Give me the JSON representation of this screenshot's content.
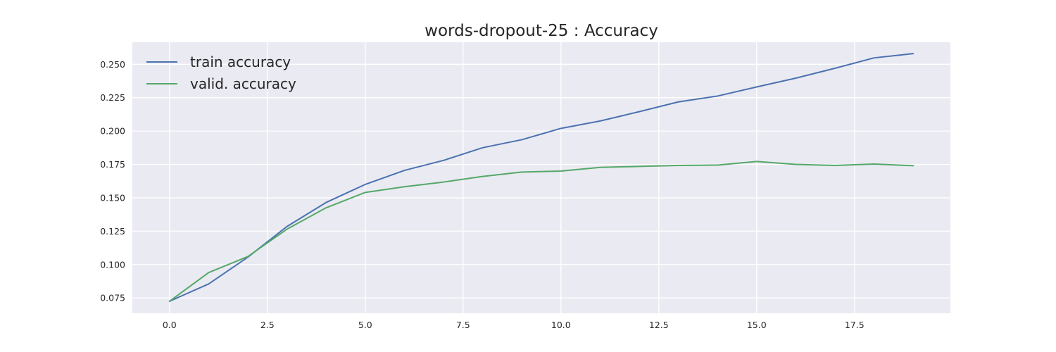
{
  "chart_data": {
    "type": "line",
    "title": "words-dropout-25 : Accuracy",
    "xlabel": "",
    "ylabel": "",
    "x": [
      0,
      1,
      2,
      3,
      4,
      5,
      6,
      7,
      8,
      9,
      10,
      11,
      12,
      13,
      14,
      15,
      16,
      17,
      18,
      19
    ],
    "xlim": [
      -0.95,
      19.95
    ],
    "ylim": [
      0.0635,
      0.2665
    ],
    "x_ticks": [
      0.0,
      2.5,
      5.0,
      7.5,
      10.0,
      12.5,
      15.0,
      17.5
    ],
    "x_tick_labels": [
      "0.0",
      "2.5",
      "5.0",
      "7.5",
      "10.0",
      "12.5",
      "15.0",
      "17.5"
    ],
    "y_ticks": [
      0.075,
      0.1,
      0.125,
      0.15,
      0.175,
      0.2,
      0.225,
      0.25
    ],
    "y_tick_labels": [
      "0.075",
      "0.100",
      "0.125",
      "0.150",
      "0.175",
      "0.200",
      "0.225",
      "0.250"
    ],
    "grid": true,
    "legend_position": "top-left",
    "background": "#eaeaf2",
    "grid_color": "#ffffff",
    "series": [
      {
        "name": "train accuracy",
        "color": "#4c72b0",
        "values": [
          0.0725,
          0.0855,
          0.1055,
          0.1285,
          0.1465,
          0.16,
          0.1705,
          0.178,
          0.1875,
          0.1935,
          0.202,
          0.2075,
          0.2145,
          0.2218,
          0.2262,
          0.233,
          0.2396,
          0.247,
          0.2548,
          0.258
        ]
      },
      {
        "name": "valid. accuracy",
        "color": "#55a868",
        "values": [
          0.0725,
          0.094,
          0.106,
          0.1265,
          0.1425,
          0.154,
          0.1583,
          0.1618,
          0.166,
          0.1693,
          0.17,
          0.1728,
          0.1735,
          0.1742,
          0.1745,
          0.1772,
          0.175,
          0.1742,
          0.1753,
          0.174
        ]
      }
    ]
  }
}
